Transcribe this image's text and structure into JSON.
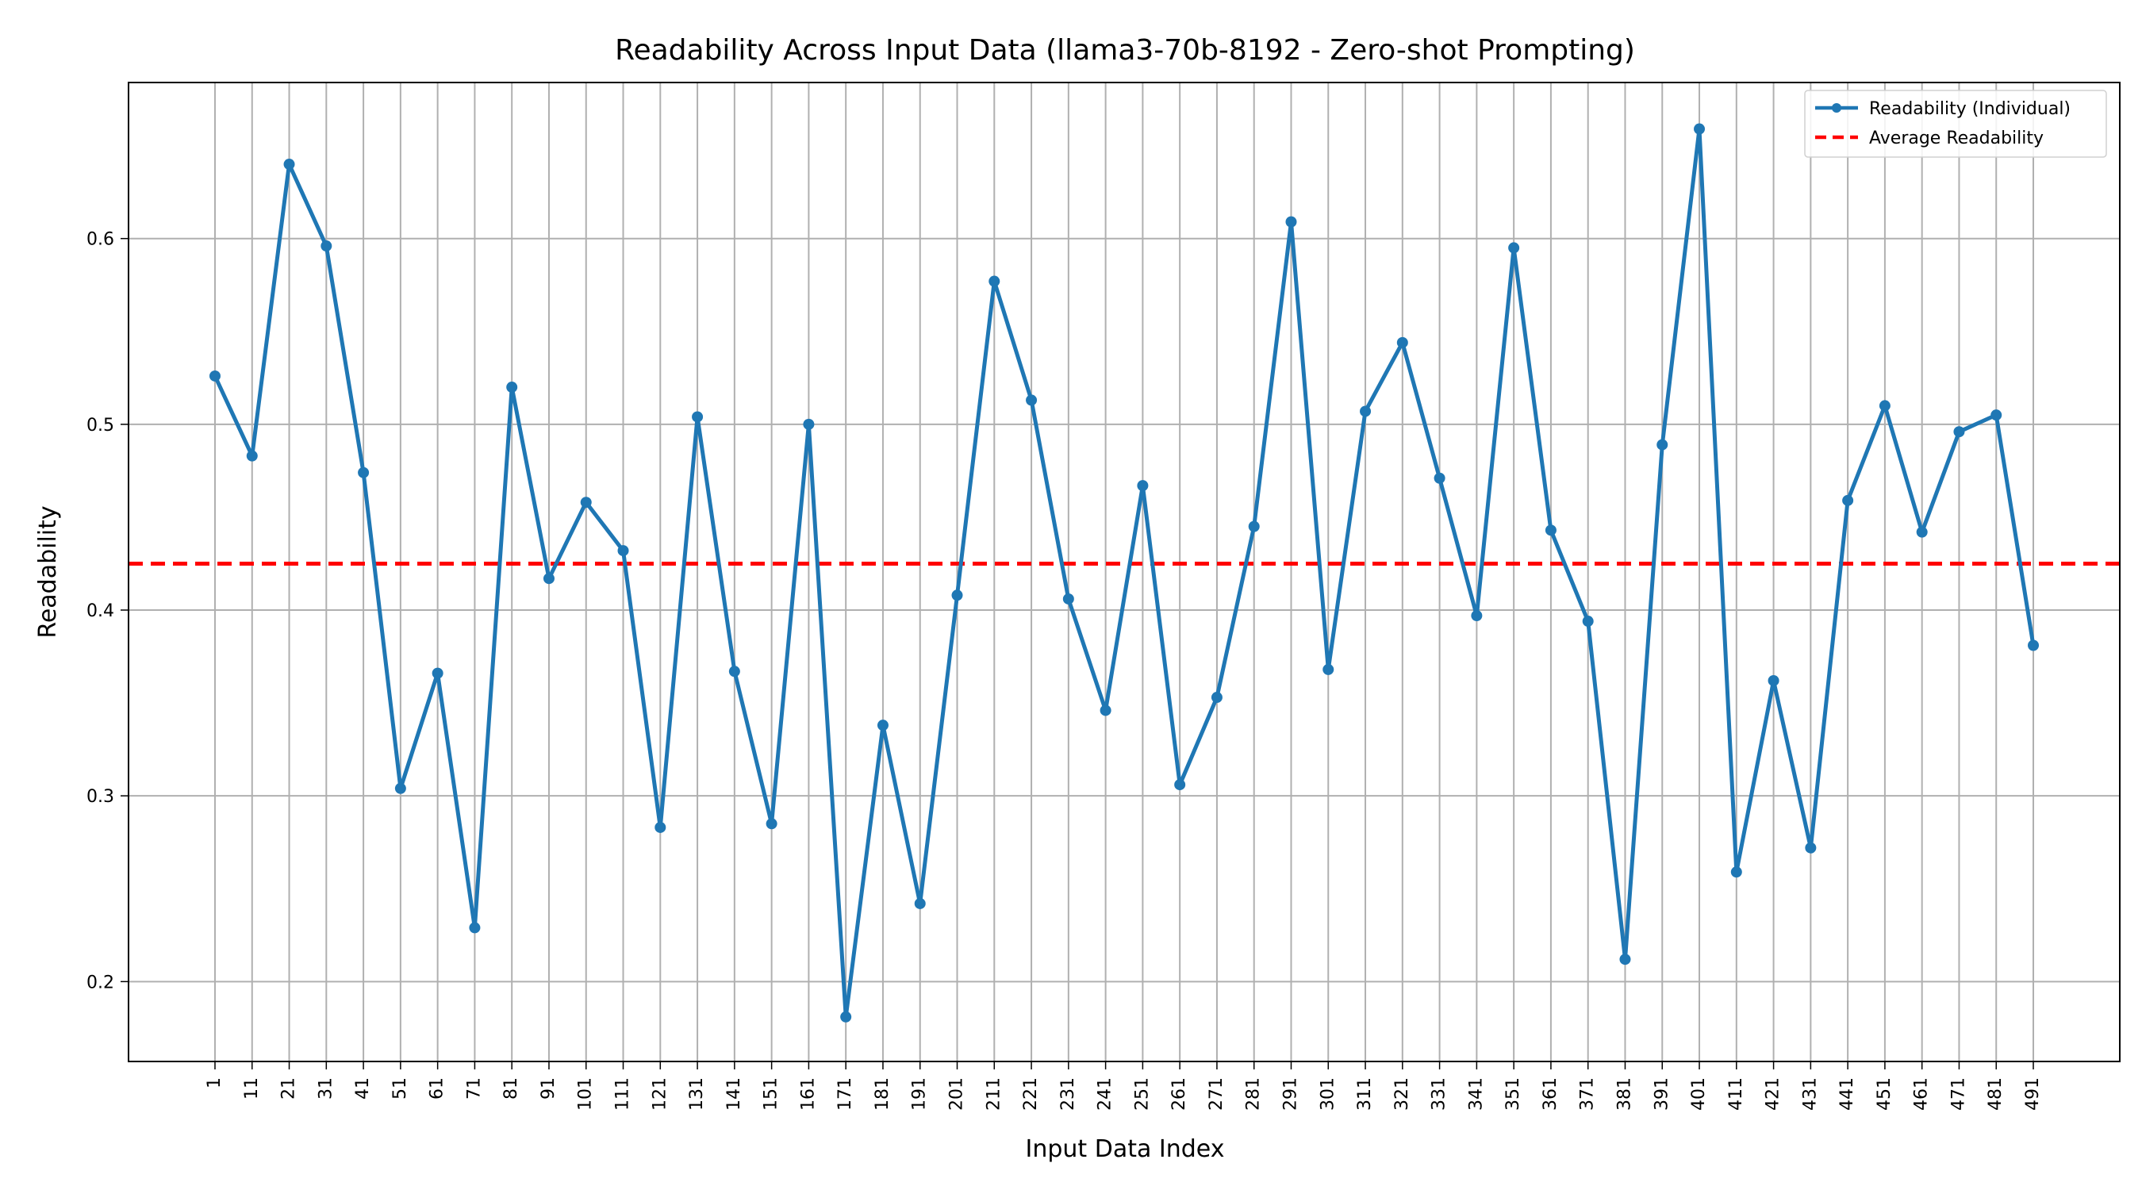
{
  "chart_data": {
    "type": "line",
    "title": "Readability Across Input Data (llama3-70b-8192 - Zero-shot Prompting)",
    "xlabel": "Input Data Index",
    "ylabel": "Readability",
    "x": [
      1,
      11,
      21,
      31,
      41,
      51,
      61,
      71,
      81,
      91,
      101,
      111,
      121,
      131,
      141,
      151,
      161,
      171,
      181,
      191,
      201,
      211,
      221,
      231,
      241,
      251,
      261,
      271,
      281,
      291,
      301,
      311,
      321,
      331,
      341,
      351,
      361,
      371,
      381,
      391,
      401,
      411,
      421,
      431,
      441,
      451,
      461,
      471,
      481,
      491
    ],
    "x_tick_labels": [
      "1",
      "11",
      "21",
      "31",
      "41",
      "51",
      "61",
      "71",
      "81",
      "91",
      "101",
      "111",
      "121",
      "131",
      "141",
      "151",
      "161",
      "171",
      "181",
      "191",
      "201",
      "211",
      "221",
      "231",
      "241",
      "251",
      "261",
      "271",
      "281",
      "291",
      "301",
      "311",
      "321",
      "331",
      "341",
      "351",
      "361",
      "371",
      "381",
      "391",
      "401",
      "411",
      "421",
      "431",
      "441",
      "451",
      "461",
      "471",
      "481",
      "491"
    ],
    "y_ticks": [
      0.2,
      0.3,
      0.4,
      0.5,
      0.6
    ],
    "y_tick_labels": [
      "0.2",
      "0.3",
      "0.4",
      "0.5",
      "0.6"
    ],
    "xlim": [
      -22.3,
      514.3
    ],
    "ylim": [
      0.157,
      0.684
    ],
    "series": [
      {
        "name": "Readability (Individual)",
        "color": "#1f77b4",
        "values": [
          0.526,
          0.483,
          0.64,
          0.596,
          0.474,
          0.304,
          0.366,
          0.229,
          0.52,
          0.417,
          0.458,
          0.432,
          0.283,
          0.504,
          0.367,
          0.285,
          0.5,
          0.181,
          0.338,
          0.242,
          0.408,
          0.577,
          0.513,
          0.406,
          0.346,
          0.467,
          0.306,
          0.353,
          0.445,
          0.609,
          0.368,
          0.507,
          0.544,
          0.471,
          0.397,
          0.595,
          0.443,
          0.394,
          0.212,
          0.489,
          0.659,
          0.259,
          0.362,
          0.272,
          0.459,
          0.51,
          0.442,
          0.496,
          0.505,
          0.381
        ]
      }
    ],
    "average": {
      "name": "Average Readability",
      "value": 0.425,
      "color": "#ff0000"
    },
    "grid": true,
    "legend_position": "top-right"
  }
}
